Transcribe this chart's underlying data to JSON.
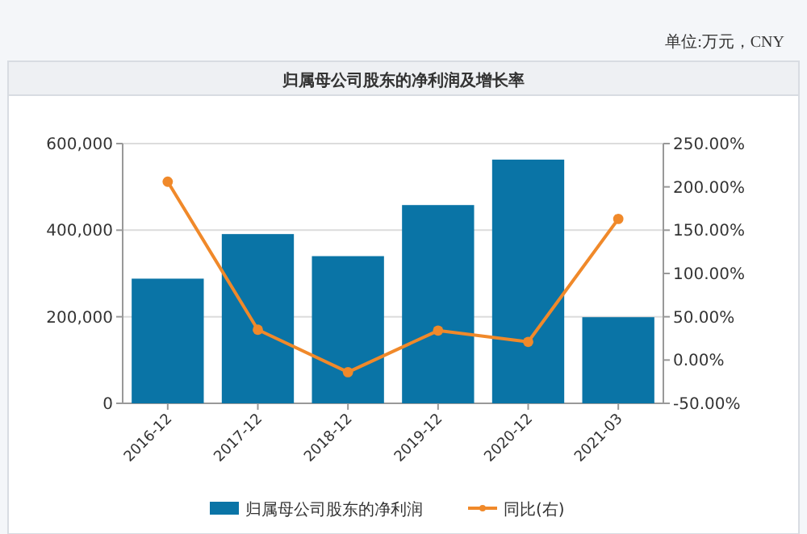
{
  "chart_data": {
    "type": "bar",
    "title": "归属母公司股东的净利润及增长率",
    "annotations": [
      "单位:万元，CNY"
    ],
    "categories": [
      "2016-12",
      "2017-12",
      "2018-12",
      "2019-12",
      "2020-12",
      "2021-03"
    ],
    "series": [
      {
        "name": "归属母公司股东的净利润",
        "color": "#0a74a6",
        "values": [
          288000,
          391000,
          340000,
          458000,
          563000,
          199000
        ]
      },
      {
        "name": "同比(右)",
        "type": "line",
        "axis": "y2",
        "color": "#f0892a",
        "marker": "circle",
        "values": [
          206,
          35,
          -14,
          34,
          21,
          163
        ]
      }
    ],
    "ylim": [
      0,
      600000
    ],
    "yticks": [
      0,
      {
        "value": 200000,
        "label": "200,000"
      },
      {
        "value": 400000,
        "label": "400,000"
      },
      {
        "value": 600000,
        "label": "600,000"
      }
    ],
    "y2lim": [
      -50,
      250
    ],
    "y2ticks": [
      {
        "value": -50,
        "label": "-50.00%"
      },
      {
        "value": 0,
        "label": "0.00%"
      },
      {
        "value": 50,
        "label": "50.00%"
      },
      {
        "value": 100,
        "label": "100.00%"
      },
      {
        "value": 150,
        "label": "150.00%"
      },
      {
        "value": 200,
        "label": "200.00%"
      },
      {
        "value": 250,
        "label": "250.00%"
      }
    ],
    "grid": "y",
    "legend": "bottom"
  }
}
